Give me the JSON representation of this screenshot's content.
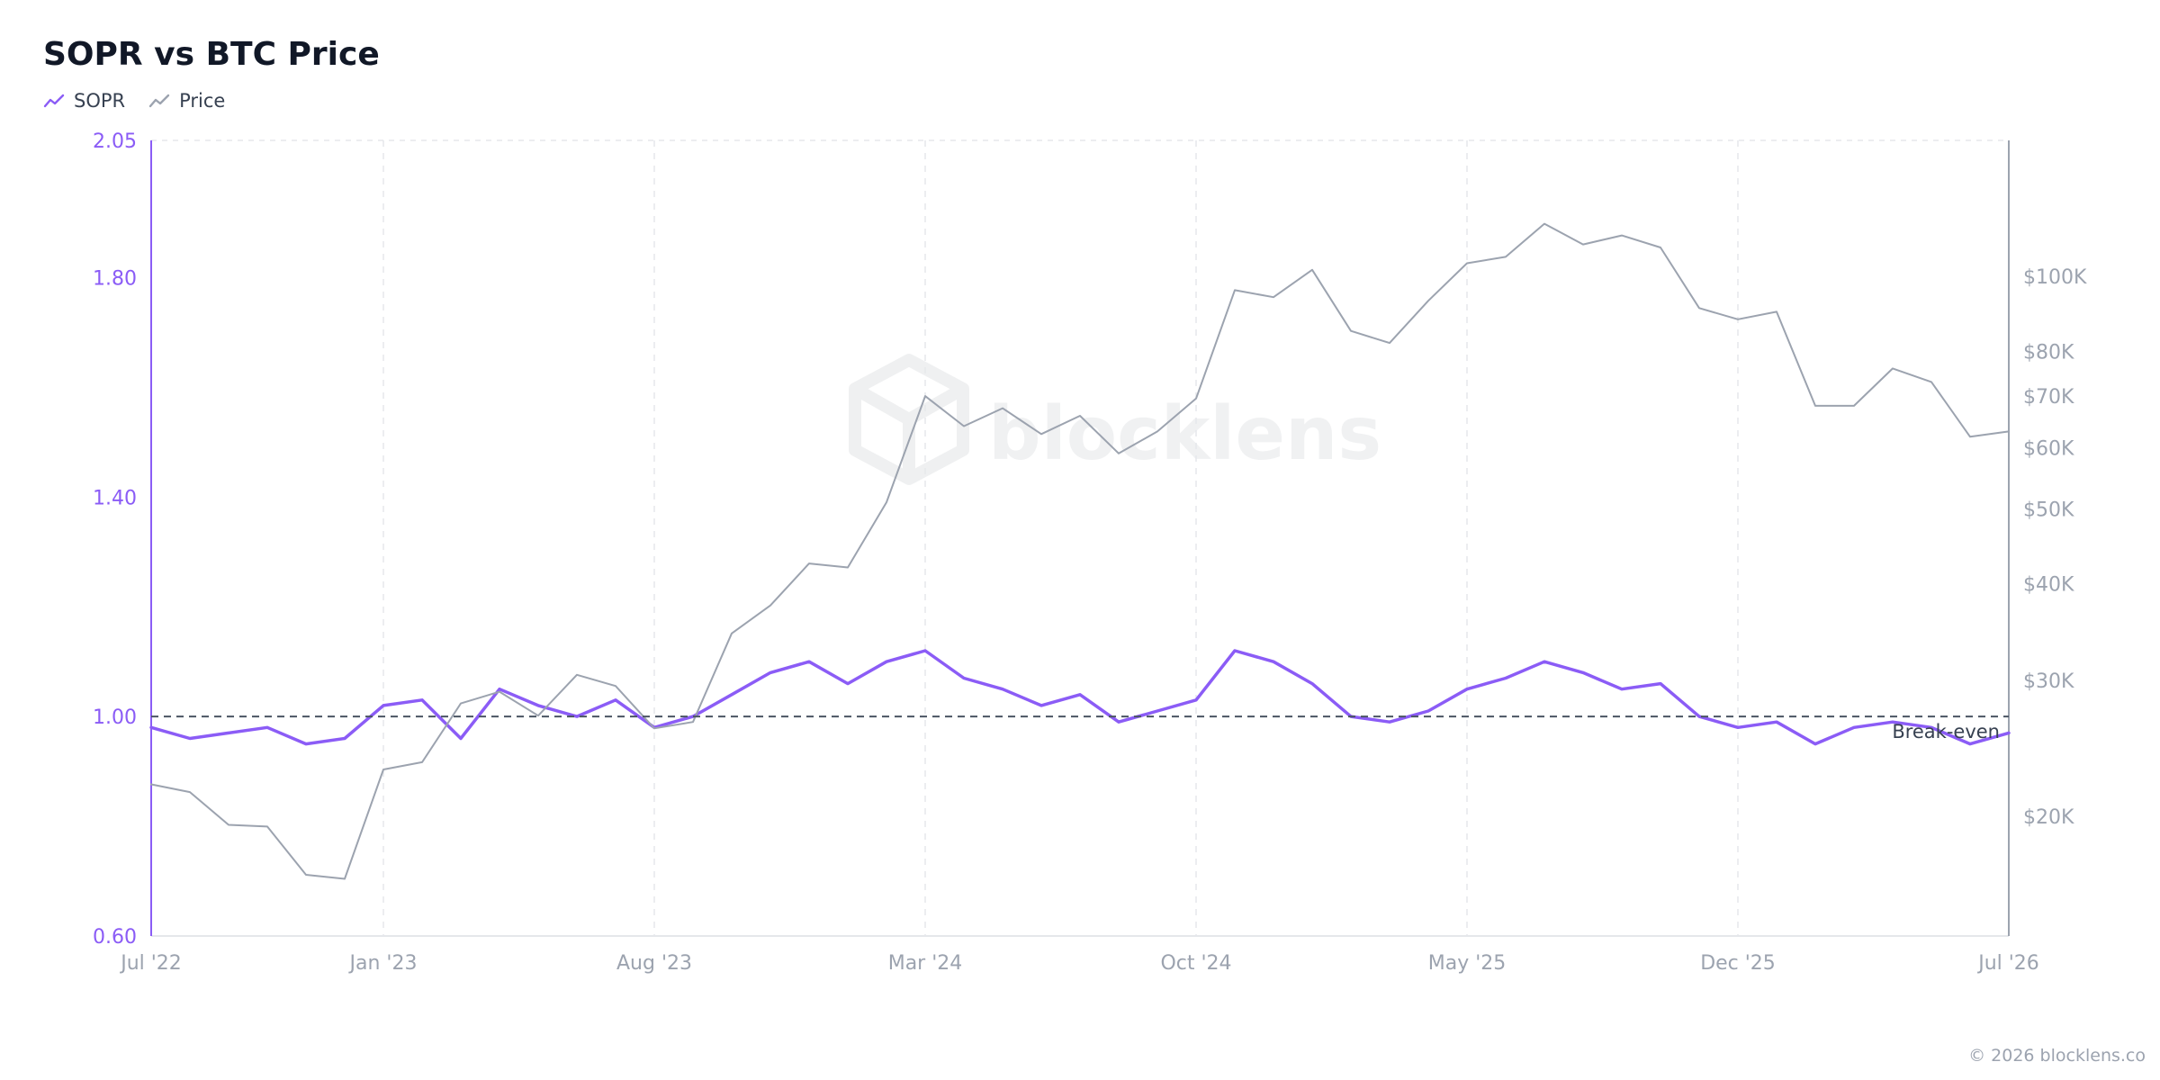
{
  "title": "SOPR vs BTC Price",
  "footer": "© 2026 blocklens.co",
  "watermark": "blocklens",
  "legend": [
    {
      "label": "SOPR",
      "color": "#8b5cf6"
    },
    {
      "label": "Price",
      "color": "#9ca3af"
    }
  ],
  "chart_data": {
    "type": "line",
    "x_ticks": [
      "Jul '22",
      "Jan '23",
      "Aug '23",
      "Mar '24",
      "Oct '24",
      "May '25",
      "Dec '25",
      "Jul '26"
    ],
    "x_range": [
      "Jul '22",
      "Jul '26"
    ],
    "left_axis": {
      "ticks": [
        "2.05",
        "1.80",
        "1.40",
        "1.00",
        "0.60"
      ],
      "range": [
        0.6,
        2.05
      ],
      "color": "#8b5cf6"
    },
    "right_axis": {
      "ticks": [
        "$100K",
        "$80K",
        "$70K",
        "$60K",
        "$50K",
        "$40K",
        "$30K",
        "$20K"
      ],
      "scale": "log",
      "range": [
        14000,
        150000
      ]
    },
    "reference_line": {
      "value": 1.0,
      "label": "Break-even",
      "style": "dashed"
    },
    "grid": "vertical dashed",
    "series": [
      {
        "name": "SOPR",
        "axis": "left",
        "color": "#8b5cf6",
        "points": [
          [
            "Jul '22",
            0.98
          ],
          [
            "Aug '22",
            0.96
          ],
          [
            "Sep '22",
            0.97
          ],
          [
            "Oct '22",
            0.98
          ],
          [
            "Nov '22",
            0.95
          ],
          [
            "Dec '22",
            0.96
          ],
          [
            "Jan '23",
            1.02
          ],
          [
            "Feb '23",
            1.03
          ],
          [
            "Mar '23",
            0.96
          ],
          [
            "Apr '23",
            1.05
          ],
          [
            "May '23",
            1.02
          ],
          [
            "Jun '23",
            1.0
          ],
          [
            "Jul '23",
            1.03
          ],
          [
            "Aug '23",
            0.98
          ],
          [
            "Sep '23",
            1.0
          ],
          [
            "Oct '23",
            1.04
          ],
          [
            "Nov '23",
            1.08
          ],
          [
            "Dec '23",
            1.1
          ],
          [
            "Jan '24",
            1.06
          ],
          [
            "Feb '24",
            1.1
          ],
          [
            "Mar '24",
            1.12
          ],
          [
            "Apr '24",
            1.07
          ],
          [
            "May '24",
            1.05
          ],
          [
            "Jun '24",
            1.02
          ],
          [
            "Jul '24",
            1.04
          ],
          [
            "Aug '24",
            0.99
          ],
          [
            "Sep '24",
            1.01
          ],
          [
            "Oct '24",
            1.03
          ],
          [
            "Nov '24",
            1.12
          ],
          [
            "Dec '24",
            1.1
          ],
          [
            "Jan '25",
            1.06
          ],
          [
            "Feb '25",
            1.0
          ],
          [
            "Mar '25",
            0.99
          ],
          [
            "Apr '25",
            1.01
          ],
          [
            "May '25",
            1.05
          ],
          [
            "Jun '25",
            1.07
          ],
          [
            "Jul '25",
            1.1
          ],
          [
            "Aug '25",
            1.08
          ],
          [
            "Sep '25",
            1.05
          ],
          [
            "Oct '25",
            1.06
          ],
          [
            "Nov '25",
            1.0
          ],
          [
            "Dec '25",
            0.98
          ],
          [
            "Jan '26",
            0.99
          ],
          [
            "Feb '26",
            0.95
          ],
          [
            "Mar '26",
            0.98
          ],
          [
            "Apr '26",
            0.99
          ],
          [
            "May '26",
            0.98
          ],
          [
            "Jun '26",
            0.95
          ],
          [
            "Jul '26",
            0.97
          ]
        ]
      },
      {
        "name": "Price",
        "axis": "right",
        "color": "#9ca3af",
        "points": [
          [
            "Jul '22",
            22000
          ],
          [
            "Aug '22",
            21500
          ],
          [
            "Sep '22",
            19500
          ],
          [
            "Oct '22",
            19400
          ],
          [
            "Nov '22",
            16800
          ],
          [
            "Dec '22",
            16600
          ],
          [
            "Jan '23",
            23000
          ],
          [
            "Feb '23",
            23500
          ],
          [
            "Mar '23",
            28000
          ],
          [
            "Apr '23",
            29000
          ],
          [
            "May '23",
            27000
          ],
          [
            "Jun '23",
            30500
          ],
          [
            "Jul '23",
            29500
          ],
          [
            "Aug '23",
            26000
          ],
          [
            "Sep '23",
            26500
          ],
          [
            "Oct '23",
            34500
          ],
          [
            "Nov '23",
            37500
          ],
          [
            "Dec '23",
            42500
          ],
          [
            "Jan '24",
            42000
          ],
          [
            "Feb '24",
            51000
          ],
          [
            "Mar '24",
            70000
          ],
          [
            "Apr '24",
            64000
          ],
          [
            "May '24",
            67500
          ],
          [
            "Jun '24",
            62500
          ],
          [
            "Jul '24",
            66000
          ],
          [
            "Aug '24",
            59000
          ],
          [
            "Sep '24",
            63000
          ],
          [
            "Oct '24",
            69500
          ],
          [
            "Nov '24",
            96000
          ],
          [
            "Dec '24",
            94000
          ],
          [
            "Jan '25",
            102000
          ],
          [
            "Feb '25",
            85000
          ],
          [
            "Mar '25",
            82000
          ],
          [
            "Apr '25",
            93000
          ],
          [
            "May '25",
            104000
          ],
          [
            "Jun '25",
            106000
          ],
          [
            "Jul '25",
            117000
          ],
          [
            "Aug '25",
            110000
          ],
          [
            "Sep '25",
            113000
          ],
          [
            "Oct '25",
            109000
          ],
          [
            "Nov '25",
            91000
          ],
          [
            "Dec '25",
            88000
          ],
          [
            "Jan '26",
            90000
          ],
          [
            "Feb '26",
            68000
          ],
          [
            "Mar '26",
            68000
          ],
          [
            "Apr '26",
            76000
          ],
          [
            "May '26",
            73000
          ],
          [
            "Jun '26",
            62000
          ],
          [
            "Jul '26",
            63000
          ]
        ]
      }
    ]
  }
}
